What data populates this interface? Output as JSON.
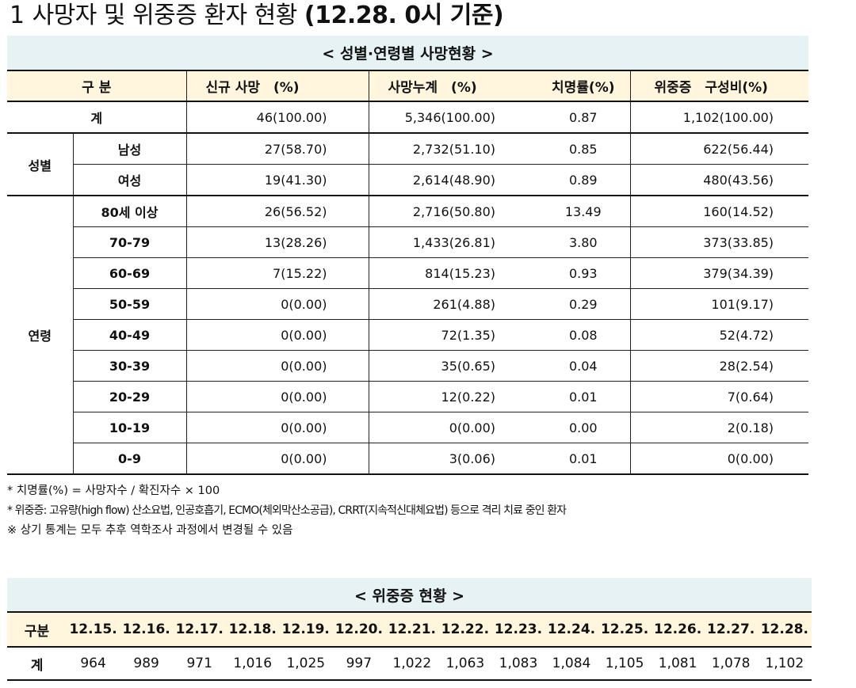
{
  "title": {
    "number": "1",
    "text": "사망자 및 위중증 환자 현황",
    "date": "(12.28. 0시 기준)"
  },
  "deaths_table": {
    "caption": "< 성별·연령별 사망현황 >",
    "headers": {
      "category": "구 분",
      "new_deaths": "신규 사망　(%)",
      "cumulative": "사망누계　(%)",
      "fatality": "치명률(%)",
      "critical": "위중증　구성비(%)"
    },
    "total": {
      "label": "계",
      "new_deaths": "46(100.00)",
      "cumulative": "5,346(100.00)",
      "fatality": "0.87",
      "critical": "1,102(100.00)"
    },
    "sex_group_label": "성별",
    "sex": [
      {
        "label": "남성",
        "new_deaths": "27(58.70)",
        "cumulative": "2,732(51.10)",
        "fatality": "0.85",
        "critical": "622(56.44)"
      },
      {
        "label": "여성",
        "new_deaths": "19(41.30)",
        "cumulative": "2,614(48.90)",
        "fatality": "0.89",
        "critical": "480(43.56)"
      }
    ],
    "age_group_label": "연령",
    "age": [
      {
        "label": "80세 이상",
        "new_deaths": "26(56.52)",
        "cumulative": "2,716(50.80)",
        "fatality": "13.49",
        "critical": "160(14.52)"
      },
      {
        "label": "70-79",
        "new_deaths": "13(28.26)",
        "cumulative": "1,433(26.81)",
        "fatality": "3.80",
        "critical": "373(33.85)"
      },
      {
        "label": "60-69",
        "new_deaths": "7(15.22)",
        "cumulative": "814(15.23)",
        "fatality": "0.93",
        "critical": "379(34.39)"
      },
      {
        "label": "50-59",
        "new_deaths": "0(0.00)",
        "cumulative": "261(4.88)",
        "fatality": "0.29",
        "critical": "101(9.17)"
      },
      {
        "label": "40-49",
        "new_deaths": "0(0.00)",
        "cumulative": "72(1.35)",
        "fatality": "0.08",
        "critical": "52(4.72)"
      },
      {
        "label": "30-39",
        "new_deaths": "0(0.00)",
        "cumulative": "35(0.65)",
        "fatality": "0.04",
        "critical": "28(2.54)"
      },
      {
        "label": "20-29",
        "new_deaths": "0(0.00)",
        "cumulative": "12(0.22)",
        "fatality": "0.01",
        "critical": "7(0.64)"
      },
      {
        "label": "10-19",
        "new_deaths": "0(0.00)",
        "cumulative": "0(0.00)",
        "fatality": "0.00",
        "critical": "2(0.18)"
      },
      {
        "label": "0-9",
        "new_deaths": "0(0.00)",
        "cumulative": "3(0.06)",
        "fatality": "0.01",
        "critical": "0(0.00)"
      }
    ]
  },
  "notes": [
    "* 치명률(%) = 사망자수 / 확진자수 × 100",
    "* 위중증: 고유량(high flow) 산소요법, 인공호흡기, ECMO(체외막산소공급), CRRT(지속적신대체요법) 등으로 격리 치료 중인 환자",
    "※ 상기 통계는 모두 추후 역학조사 과정에서 변경될 수 있음"
  ],
  "critical_trend": {
    "caption": "< 위중증 현황 >",
    "header_label": "구분",
    "dates": [
      "12.15.",
      "12.16.",
      "12.17.",
      "12.18.",
      "12.19.",
      "12.20.",
      "12.21.",
      "12.22.",
      "12.23.",
      "12.24.",
      "12.25.",
      "12.26.",
      "12.27.",
      "12.28."
    ],
    "row_label": "계",
    "values": [
      "964",
      "989",
      "971",
      "1,016",
      "1,025",
      "997",
      "1,022",
      "1,063",
      "1,083",
      "1,084",
      "1,105",
      "1,081",
      "1,078",
      "1,102"
    ]
  },
  "colors": {
    "caption_bg": "#e6f2f4",
    "header_bg": "#fff6dd"
  }
}
